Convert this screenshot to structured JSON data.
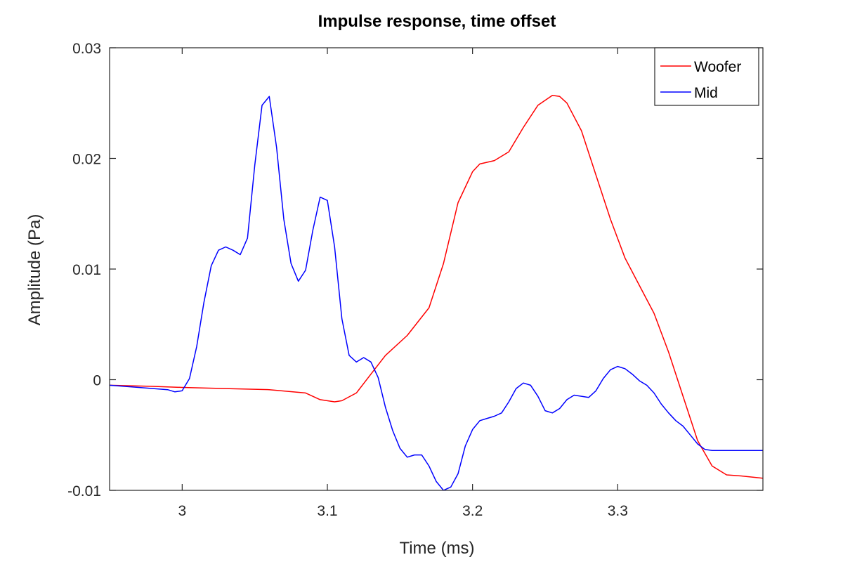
{
  "chart_data": {
    "type": "line",
    "title": "Impulse response, time offset",
    "xlabel": "Time (ms)",
    "ylabel": "Amplitude (Pa)",
    "xlim": [
      2.95,
      3.4
    ],
    "ylim": [
      -0.01,
      0.03
    ],
    "xticks": [
      3.0,
      3.1,
      3.2,
      3.3
    ],
    "xtick_labels": [
      "3",
      "3.1",
      "3.2",
      "3.3"
    ],
    "yticks": [
      -0.01,
      0,
      0.01,
      0.02,
      0.03
    ],
    "ytick_labels": [
      "-0.01",
      "0",
      "0.01",
      "0.02",
      "0.03"
    ],
    "grid": false,
    "legend_position": "top-right",
    "series": [
      {
        "name": "Woofer",
        "color": "#ff0000",
        "x": [
          2.95,
          2.98,
          3.0,
          3.03,
          3.06,
          3.085,
          3.095,
          3.105,
          3.11,
          3.12,
          3.13,
          3.14,
          3.155,
          3.17,
          3.18,
          3.19,
          3.2,
          3.205,
          3.215,
          3.225,
          3.235,
          3.245,
          3.255,
          3.26,
          3.265,
          3.275,
          3.285,
          3.295,
          3.305,
          3.315,
          3.325,
          3.335,
          3.345,
          3.355,
          3.365,
          3.375,
          3.385,
          3.4
        ],
        "y": [
          -0.0005,
          -0.0006,
          -0.0007,
          -0.0008,
          -0.0009,
          -0.0012,
          -0.0018,
          -0.002,
          -0.0019,
          -0.0012,
          0.0005,
          0.0022,
          0.004,
          0.0065,
          0.0105,
          0.016,
          0.0188,
          0.0195,
          0.0198,
          0.0206,
          0.0228,
          0.0248,
          0.0257,
          0.0256,
          0.025,
          0.0225,
          0.0185,
          0.0145,
          0.011,
          0.0085,
          0.006,
          0.0025,
          -0.0015,
          -0.0055,
          -0.0078,
          -0.0086,
          -0.0087,
          -0.0089
        ]
      },
      {
        "name": "Mid",
        "color": "#0000ff",
        "x": [
          2.95,
          2.97,
          2.99,
          2.995,
          3.0,
          3.005,
          3.01,
          3.015,
          3.02,
          3.025,
          3.03,
          3.035,
          3.04,
          3.045,
          3.05,
          3.055,
          3.06,
          3.065,
          3.07,
          3.075,
          3.08,
          3.085,
          3.09,
          3.095,
          3.1,
          3.105,
          3.11,
          3.115,
          3.12,
          3.125,
          3.13,
          3.135,
          3.14,
          3.145,
          3.15,
          3.155,
          3.16,
          3.165,
          3.17,
          3.175,
          3.18,
          3.185,
          3.19,
          3.195,
          3.2,
          3.205,
          3.21,
          3.215,
          3.22,
          3.225,
          3.23,
          3.235,
          3.24,
          3.245,
          3.25,
          3.255,
          3.26,
          3.265,
          3.27,
          3.275,
          3.28,
          3.285,
          3.29,
          3.295,
          3.3,
          3.305,
          3.31,
          3.315,
          3.32,
          3.325,
          3.33,
          3.335,
          3.34,
          3.345,
          3.35,
          3.355,
          3.36,
          3.365,
          3.37,
          3.375,
          3.38,
          3.385,
          3.39,
          3.395,
          3.4
        ],
        "y": [
          -0.0005,
          -0.0007,
          -0.0009,
          -0.0011,
          -0.001,
          0.0001,
          0.003,
          0.007,
          0.0103,
          0.0117,
          0.012,
          0.0117,
          0.0113,
          0.0128,
          0.0194,
          0.0248,
          0.0256,
          0.021,
          0.0145,
          0.0105,
          0.0089,
          0.0099,
          0.0135,
          0.0165,
          0.0162,
          0.012,
          0.0055,
          0.0022,
          0.0016,
          0.002,
          0.0016,
          0.0002,
          -0.0025,
          -0.0046,
          -0.0062,
          -0.007,
          -0.0068,
          -0.0068,
          -0.0078,
          -0.0092,
          -0.01,
          -0.0097,
          -0.0085,
          -0.006,
          -0.0045,
          -0.0037,
          -0.0035,
          -0.0033,
          -0.003,
          -0.002,
          -0.0008,
          -0.0003,
          -0.0005,
          -0.0015,
          -0.0028,
          -0.003,
          -0.0026,
          -0.0018,
          -0.0014,
          -0.0015,
          -0.0016,
          -0.001,
          0.0001,
          0.0009,
          0.0012,
          0.001,
          0.0005,
          -0.0001,
          -0.0005,
          -0.0012,
          -0.0022,
          -0.003,
          -0.0037,
          -0.0042,
          -0.005,
          -0.0058,
          -0.0063,
          -0.0064,
          -0.0064,
          -0.0064,
          -0.0064,
          -0.0064,
          -0.0064,
          -0.0064,
          -0.0064
        ]
      }
    ]
  }
}
